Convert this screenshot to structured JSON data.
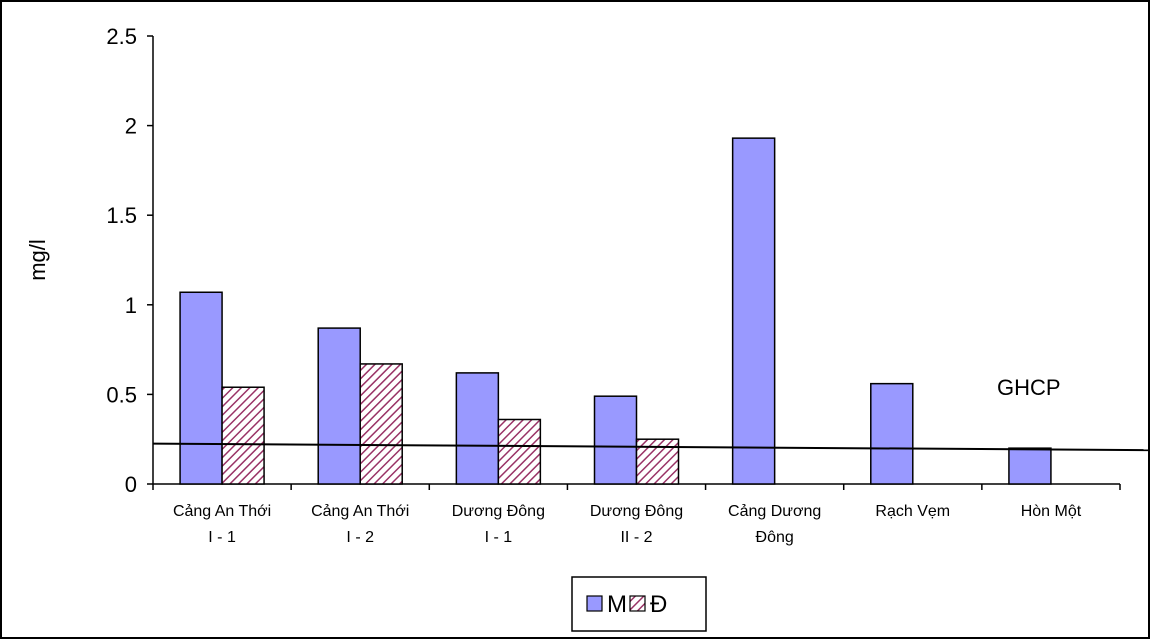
{
  "chart_data": {
    "type": "bar",
    "title": "",
    "xlabel": "",
    "ylabel": "mg/l",
    "ylim": [
      0,
      2.5
    ],
    "yticks": [
      "0",
      "0.5",
      "1",
      "1.5",
      "2",
      "2.5"
    ],
    "categories": [
      [
        "Cảng An Thới",
        "I - 1"
      ],
      [
        "Cảng An Thới",
        "I - 2"
      ],
      [
        "Dương Đông",
        "I - 1"
      ],
      [
        "Dương Đông",
        "II - 2"
      ],
      [
        "Cảng Dương",
        "Đông"
      ],
      [
        "Rạch Vẹm"
      ],
      [
        "Hòn Một"
      ]
    ],
    "series": [
      {
        "name": "M",
        "values": [
          1.07,
          0.87,
          0.62,
          0.49,
          1.93,
          0.56,
          0.2
        ],
        "color": "#9999ff",
        "pattern": "solid"
      },
      {
        "name": "Đ",
        "values": [
          0.54,
          0.67,
          0.36,
          0.25,
          null,
          null,
          null
        ],
        "color": "#993366",
        "pattern": "hatched"
      }
    ],
    "reference_line": {
      "label": "GHCP",
      "start_value": 0.22,
      "end_value": 0.2
    },
    "grid": false,
    "legend_position": "bottom-center"
  }
}
